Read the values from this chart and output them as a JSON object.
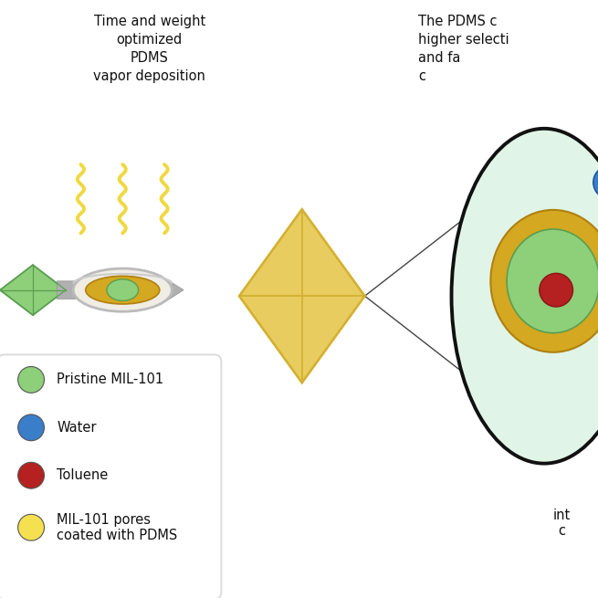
{
  "bg_color": "#ffffff",
  "title_left": "Time and weight\noptimized\nPDMS\nvapor deposition",
  "title_right": "The PDMS c\nhigher selecti\nand fa\nc",
  "legend_items": [
    {
      "label": "Pristine MIL-101",
      "color": "#8ecf7a"
    },
    {
      "label": "Water",
      "color": "#3a7dc9"
    },
    {
      "label": "Toluene",
      "color": "#b52020"
    },
    {
      "label": "MIL-101 pores\ncoated with PDMS",
      "color": "#f5e050"
    }
  ],
  "arrow_color": "#999999",
  "pdms_yellow": "#d4b030",
  "pdms_yellow_light": "#e8cc60",
  "crystal_green": "#8ecf7a",
  "crystal_green_dark": "#5a9e50",
  "petri_ring": "#cccccc",
  "petri_fill": "#f0ede0",
  "wavy_color": "#f0d840",
  "cone_fill": "#e0f5e8",
  "cone_outline": "#111111",
  "right_text_bottom": "int\nc",
  "legend_box_color": "#dddddd"
}
